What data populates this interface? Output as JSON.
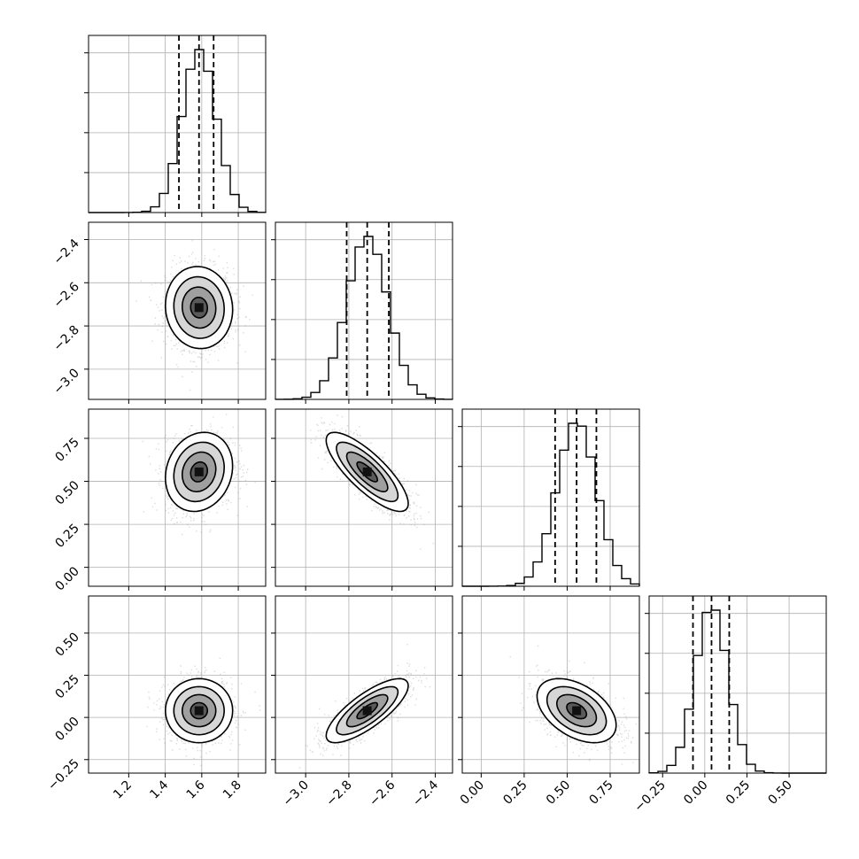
{
  "chart_data": {
    "type": "corner",
    "parameters": [
      {
        "mean": 1.585,
        "std": 0.092,
        "quantiles": [
          1.475,
          1.585,
          1.665
        ],
        "xlim": [
          0.98,
          1.95
        ],
        "ticks": [
          "1.2",
          "1.4",
          "1.6",
          "1.8"
        ],
        "tick_values": [
          1.2,
          1.4,
          1.6,
          1.8
        ]
      },
      {
        "mean": -2.715,
        "std": 0.095,
        "quantiles": [
          -2.81,
          -2.715,
          -2.615
        ],
        "xlim": [
          -3.14,
          -2.32
        ],
        "ticks": [
          "−3.0",
          "−2.8",
          "−2.6",
          "−2.4"
        ],
        "tick_values": [
          -3.0,
          -2.8,
          -2.6,
          -2.4
        ]
      },
      {
        "mean": 0.555,
        "std": 0.115,
        "quantiles": [
          0.43,
          0.555,
          0.67
        ],
        "xlim": [
          -0.11,
          0.92
        ],
        "ticks": [
          "0.00",
          "0.25",
          "0.50",
          "0.75"
        ],
        "tick_values": [
          0.0,
          0.25,
          0.5,
          0.75
        ]
      },
      {
        "mean": 0.04,
        "std": 0.095,
        "quantiles": [
          -0.07,
          0.04,
          0.145
        ],
        "xlim": [
          -0.33,
          0.72
        ],
        "ticks": [
          "−0.25",
          "0.00",
          "0.25",
          "0.50"
        ],
        "tick_values": [
          -0.25,
          0.0,
          0.25,
          0.5
        ]
      }
    ],
    "correlations": {
      "1-0": -0.05,
      "2-0": 0.15,
      "2-1": -0.8,
      "3-0": 0.0,
      "3-1": 0.78,
      "3-2": -0.45
    },
    "contour_sigmas": [
      0.5,
      1.0,
      1.5,
      2.0
    ],
    "histogram_bins": 20,
    "grid": true,
    "show_quantiles": true
  }
}
